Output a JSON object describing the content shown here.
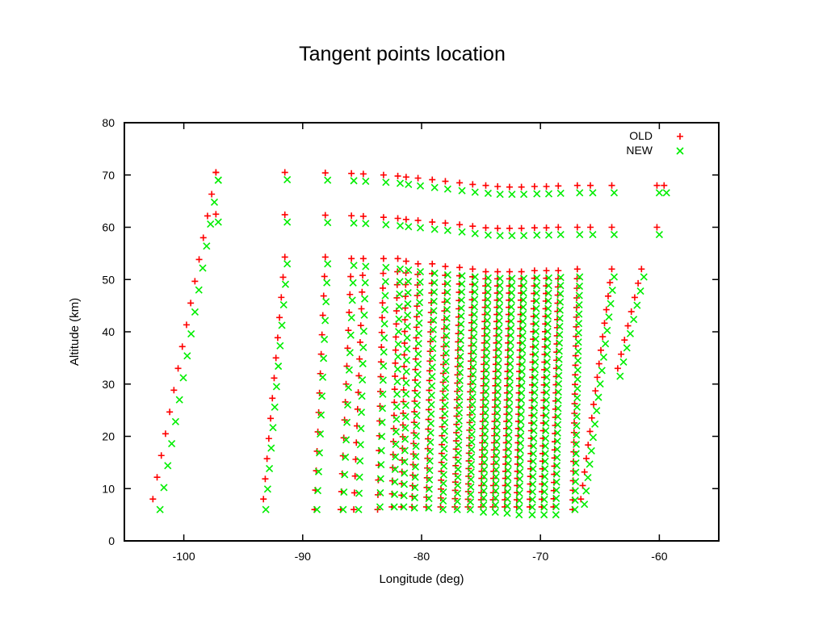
{
  "chart_data": {
    "type": "scatter",
    "title": "Tangent points location",
    "xlabel": "Longitude (deg)",
    "ylabel": "Altitude (km)",
    "xlim": [
      -105,
      -55
    ],
    "ylim": [
      0,
      80
    ],
    "xticks": [
      -100,
      -90,
      -80,
      -70,
      -60
    ],
    "yticks": [
      0,
      10,
      20,
      30,
      40,
      50,
      60,
      70,
      80
    ],
    "legend_position": "top-right",
    "grid": false,
    "series": [
      {
        "name": "OLD",
        "marker": "+",
        "color": "#ff0000",
        "columns": [
          {
            "x": [
              -102.6,
              -97.3
            ],
            "y": [
              8,
              70.5
            ],
            "n": 16
          },
          {
            "x": [
              -93.3,
              -91.5
            ],
            "y": [
              8,
              54.3
            ],
            "n": 13
          },
          {
            "x": [
              -89,
              -88.1
            ],
            "y": [
              6,
              54.3
            ],
            "n": 14
          },
          {
            "x": [
              -86.8,
              -85.9
            ],
            "y": [
              6,
              54
            ],
            "n": 15
          },
          {
            "x": [
              -85.7,
              -84.9
            ],
            "y": [
              6,
              54
            ],
            "n": 16
          },
          {
            "x": [
              -83.7,
              -83.2
            ],
            "y": [
              6,
              54
            ],
            "n": 18
          },
          {
            "x": [
              -82.5,
              -82
            ],
            "y": [
              6.5,
              54
            ],
            "n": 20
          },
          {
            "x": [
              -81.7,
              -81.3
            ],
            "y": [
              6.5,
              53.5
            ],
            "n": 22
          },
          {
            "x": [
              -80.8,
              -80.3
            ],
            "y": [
              6.5,
              53
            ],
            "n": 24
          },
          {
            "x": [
              -79.6,
              -79.1
            ],
            "y": [
              6.5,
              53
            ],
            "n": 26
          },
          {
            "x": [
              -78.4,
              -78
            ],
            "y": [
              6.5,
              52.5
            ],
            "n": 28
          },
          {
            "x": [
              -77.2,
              -76.8
            ],
            "y": [
              6.5,
              52.3
            ],
            "n": 30
          },
          {
            "x": [
              -76.1,
              -75.7
            ],
            "y": [
              6.5,
              52
            ],
            "n": 32
          },
          {
            "x": [
              -75,
              -74.6
            ],
            "y": [
              6.5,
              51.5
            ],
            "n": 34
          },
          {
            "x": [
              -74,
              -73.6
            ],
            "y": [
              6.5,
              51.5
            ],
            "n": 34
          },
          {
            "x": [
              -73,
              -72.6
            ],
            "y": [
              6.5,
              51.5
            ],
            "n": 34
          },
          {
            "x": [
              -72,
              -71.6
            ],
            "y": [
              6.5,
              51.5
            ],
            "n": 34
          },
          {
            "x": [
              -70.9,
              -70.5
            ],
            "y": [
              6.5,
              51.7
            ],
            "n": 32
          },
          {
            "x": [
              -69.9,
              -69.5
            ],
            "y": [
              6.5,
              51.7
            ],
            "n": 32
          },
          {
            "x": [
              -68.9,
              -68.5
            ],
            "y": [
              6.5,
              51.7
            ],
            "n": 30
          },
          {
            "x": [
              -67.3,
              -66.9
            ],
            "y": [
              6,
              52
            ],
            "n": 26
          },
          {
            "x": [
              -66.6,
              -64
            ],
            "y": [
              8,
              52
            ],
            "n": 18
          },
          {
            "x": [
              -63.5,
              -61.5
            ],
            "y": [
              33,
              52
            ],
            "n": 8
          }
        ],
        "upper": [
          {
            "x": -97.3,
            "y": [
              62.5,
              70.5
            ]
          },
          {
            "x": -91.5,
            "y": [
              62.4,
              70.5
            ]
          },
          {
            "x": -88.1,
            "y": [
              62.3,
              70.4
            ]
          },
          {
            "x": -85.9,
            "y": [
              62.2,
              70.3
            ]
          },
          {
            "x": -84.9,
            "y": [
              62.1,
              70.2
            ]
          },
          {
            "x": -83.2,
            "y": [
              61.9,
              70
            ]
          },
          {
            "x": -82,
            "y": [
              61.7,
              69.8
            ]
          },
          {
            "x": -81.3,
            "y": [
              61.5,
              69.6
            ]
          },
          {
            "x": -80.3,
            "y": [
              61.3,
              69.4
            ]
          },
          {
            "x": -79.1,
            "y": [
              61,
              69.1
            ]
          },
          {
            "x": -78,
            "y": [
              60.8,
              68.8
            ]
          },
          {
            "x": -76.8,
            "y": [
              60.5,
              68.5
            ]
          },
          {
            "x": -75.7,
            "y": [
              60.2,
              68.2
            ]
          },
          {
            "x": -74.6,
            "y": [
              59.9,
              68
            ]
          },
          {
            "x": -73.6,
            "y": [
              59.8,
              67.8
            ]
          },
          {
            "x": -72.6,
            "y": [
              59.8,
              67.7
            ]
          },
          {
            "x": -71.6,
            "y": [
              59.8,
              67.7
            ]
          },
          {
            "x": -70.5,
            "y": [
              59.9,
              67.8
            ]
          },
          {
            "x": -69.5,
            "y": [
              59.9,
              67.8
            ]
          },
          {
            "x": -68.5,
            "y": [
              60,
              67.9
            ]
          },
          {
            "x": -66.9,
            "y": [
              60,
              68
            ]
          },
          {
            "x": -65.8,
            "y": [
              60,
              68
            ]
          },
          {
            "x": -64,
            "y": [
              60,
              68
            ]
          },
          {
            "x": -60.2,
            "y": [
              60,
              68
            ]
          },
          {
            "x": -59.6,
            "y": [
              68,
              68
            ]
          }
        ]
      },
      {
        "name": "NEW",
        "marker": "x",
        "color": "#00ee00",
        "columns": [
          {
            "x": [
              -102,
              -97.1
            ],
            "y": [
              6,
              69
            ],
            "n": 16
          },
          {
            "x": [
              -93.1,
              -91.3
            ],
            "y": [
              6,
              53
            ],
            "n": 13
          },
          {
            "x": [
              -88.8,
              -87.9
            ],
            "y": [
              6,
              53
            ],
            "n": 14
          },
          {
            "x": [
              -86.6,
              -85.7
            ],
            "y": [
              6,
              52.7
            ],
            "n": 15
          },
          {
            "x": [
              -85.3,
              -84.7
            ],
            "y": [
              6,
              52.5
            ],
            "n": 16
          },
          {
            "x": [
              -83.5,
              -83
            ],
            "y": [
              6.5,
              52.3
            ],
            "n": 18
          },
          {
            "x": [
              -82.3,
              -81.8
            ],
            "y": [
              6.5,
              52
            ],
            "n": 20
          },
          {
            "x": [
              -81.5,
              -81.1
            ],
            "y": [
              6.5,
              51.8
            ],
            "n": 22
          },
          {
            "x": [
              -80.6,
              -80.1
            ],
            "y": [
              6.3,
              51.5
            ],
            "n": 24
          },
          {
            "x": [
              -79.4,
              -78.9
            ],
            "y": [
              6.3,
              51.2
            ],
            "n": 26
          },
          {
            "x": [
              -78.2,
              -77.8
            ],
            "y": [
              6,
              50.9
            ],
            "n": 28
          },
          {
            "x": [
              -77,
              -76.6
            ],
            "y": [
              6,
              50.7
            ],
            "n": 30
          },
          {
            "x": [
              -75.9,
              -75.5
            ],
            "y": [
              6,
              50.5
            ],
            "n": 32
          },
          {
            "x": [
              -74.8,
              -74.4
            ],
            "y": [
              5.5,
              50.3
            ],
            "n": 34
          },
          {
            "x": [
              -73.8,
              -73.4
            ],
            "y": [
              5.5,
              50.2
            ],
            "n": 34
          },
          {
            "x": [
              -72.8,
              -72.4
            ],
            "y": [
              5.3,
              50.2
            ],
            "n": 34
          },
          {
            "x": [
              -71.8,
              -71.4
            ],
            "y": [
              5,
              50.2
            ],
            "n": 34
          },
          {
            "x": [
              -70.7,
              -70.3
            ],
            "y": [
              5,
              50.3
            ],
            "n": 32
          },
          {
            "x": [
              -69.7,
              -69.3
            ],
            "y": [
              5,
              50.3
            ],
            "n": 32
          },
          {
            "x": [
              -68.7,
              -68.3
            ],
            "y": [
              5,
              50.4
            ],
            "n": 30
          },
          {
            "x": [
              -67.1,
              -66.7
            ],
            "y": [
              6,
              50.5
            ],
            "n": 26
          },
          {
            "x": [
              -66.3,
              -63.8
            ],
            "y": [
              7,
              50.5
            ],
            "n": 18
          },
          {
            "x": [
              -63.3,
              -61.3
            ],
            "y": [
              31.5,
              50.5
            ],
            "n": 8
          }
        ],
        "upper": [
          {
            "x": -97.1,
            "y": [
              61,
              69
            ]
          },
          {
            "x": -91.3,
            "y": [
              61,
              69.1
            ]
          },
          {
            "x": -87.9,
            "y": [
              60.9,
              69
            ]
          },
          {
            "x": -85.7,
            "y": [
              60.8,
              68.9
            ]
          },
          {
            "x": -84.7,
            "y": [
              60.7,
              68.8
            ]
          },
          {
            "x": -83,
            "y": [
              60.5,
              68.6
            ]
          },
          {
            "x": -81.8,
            "y": [
              60.3,
              68.4
            ]
          },
          {
            "x": -81.1,
            "y": [
              60.1,
              68.2
            ]
          },
          {
            "x": -80.1,
            "y": [
              59.9,
              67.9
            ]
          },
          {
            "x": -78.9,
            "y": [
              59.6,
              67.6
            ]
          },
          {
            "x": -77.8,
            "y": [
              59.4,
              67.3
            ]
          },
          {
            "x": -76.6,
            "y": [
              59.1,
              67
            ]
          },
          {
            "x": -75.5,
            "y": [
              58.8,
              66.7
            ]
          },
          {
            "x": -74.4,
            "y": [
              58.5,
              66.5
            ]
          },
          {
            "x": -73.4,
            "y": [
              58.4,
              66.3
            ]
          },
          {
            "x": -72.4,
            "y": [
              58.4,
              66.3
            ]
          },
          {
            "x": -71.4,
            "y": [
              58.4,
              66.3
            ]
          },
          {
            "x": -70.3,
            "y": [
              58.5,
              66.4
            ]
          },
          {
            "x": -69.3,
            "y": [
              58.5,
              66.4
            ]
          },
          {
            "x": -68.3,
            "y": [
              58.6,
              66.5
            ]
          },
          {
            "x": -66.7,
            "y": [
              58.6,
              66.6
            ]
          },
          {
            "x": -65.6,
            "y": [
              58.6,
              66.6
            ]
          },
          {
            "x": -63.8,
            "y": [
              58.6,
              66.6
            ]
          },
          {
            "x": -60,
            "y": [
              58.6,
              66.6
            ]
          },
          {
            "x": -59.4,
            "y": [
              66.6,
              66.6
            ]
          }
        ]
      }
    ]
  }
}
